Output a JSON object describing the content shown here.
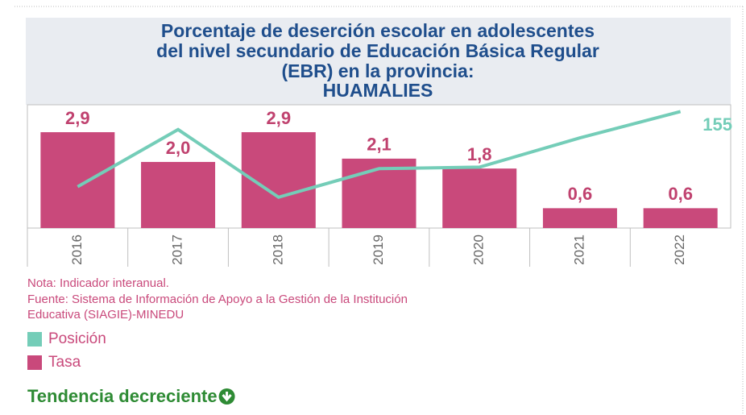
{
  "chart_data": {
    "type": "bar_line",
    "title": [
      "Porcentaje de deserción escolar en adolescentes",
      "del nivel secundario de Educación Básica Regular",
      "(EBR) en la provincia:"
    ],
    "subtitle": "HUAMALIES",
    "categories": [
      "2016",
      "2017",
      "2018",
      "2019",
      "2020",
      "2021",
      "2022"
    ],
    "series": [
      {
        "name": "Tasa",
        "type": "bar",
        "color": "#c9497b",
        "values": [
          2.9,
          2.0,
          2.9,
          2.1,
          1.8,
          0.6,
          0.6
        ],
        "value_labels": [
          "2,9",
          "2,0",
          "2,9",
          "2,1",
          "1,8",
          "0,6",
          "0,6"
        ]
      },
      {
        "name": "Posición",
        "type": "line",
        "axis": "y2",
        "color": "#74cdb8",
        "values": [
          55,
          131,
          41,
          79,
          81,
          120,
          155
        ],
        "value_labels": [
          null,
          null,
          null,
          null,
          null,
          null,
          "155"
        ]
      }
    ],
    "legend_order": [
      1,
      0
    ],
    "ylim": [
      0,
      3.73
    ],
    "y2lim": [
      0,
      164
    ]
  },
  "notes": [
    "Nota: Indicador interanual.",
    "Fuente: Sistema de Información de Apoyo a la Gestión de la Institución",
    "Educativa (SIAGIE)-MINEDU"
  ],
  "trend": "Tendencia decreciente"
}
